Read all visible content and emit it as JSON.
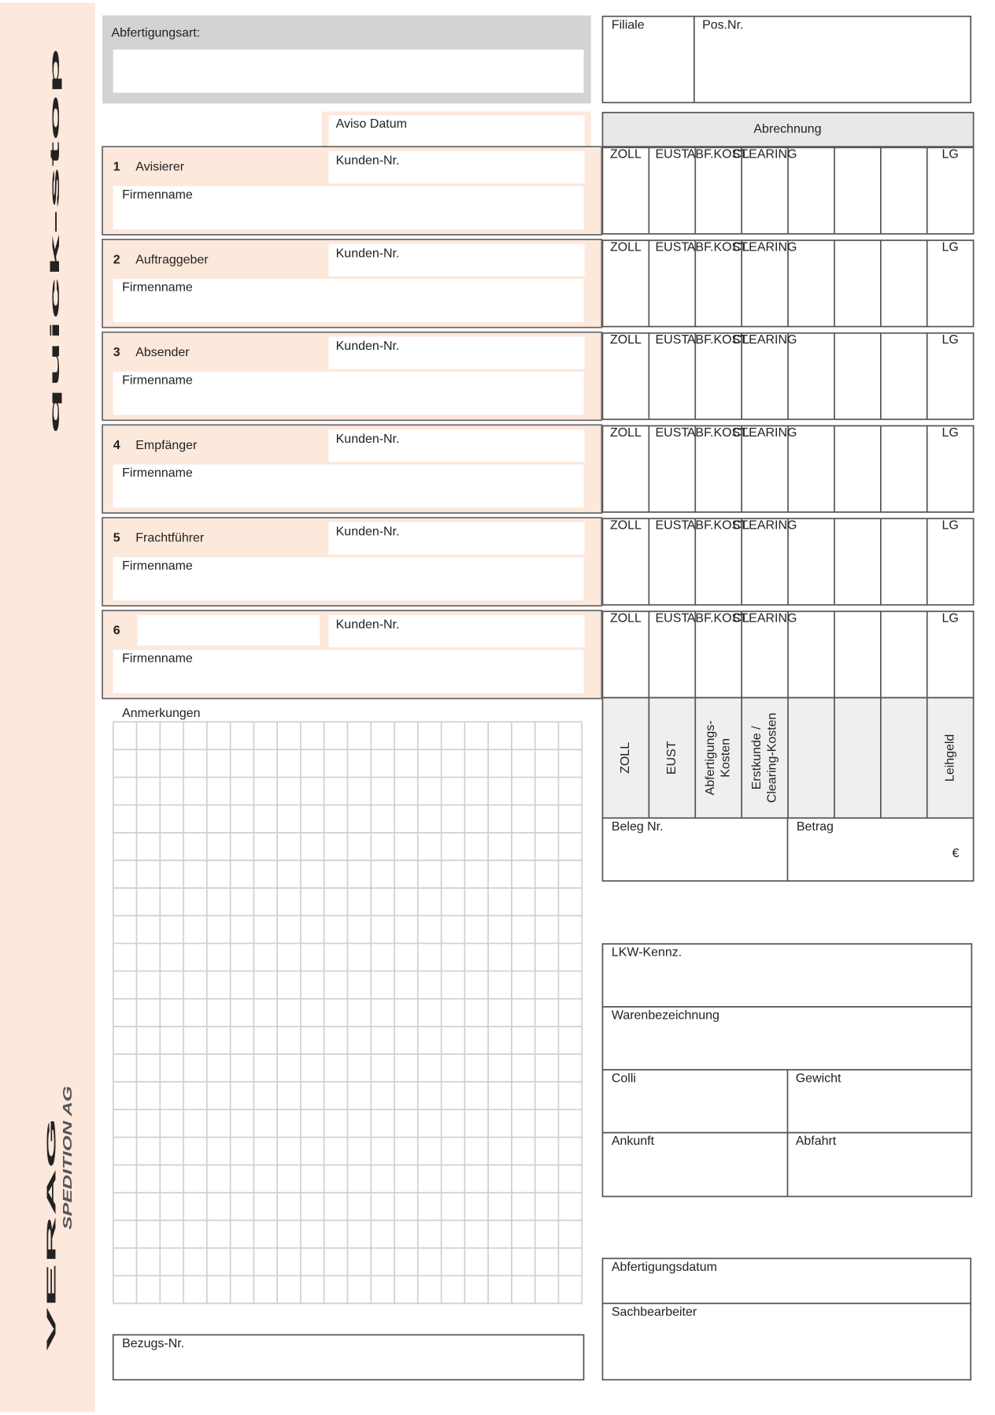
{
  "brand": {
    "product": "quick-stop",
    "company": "VERAG",
    "company_suffix": "SPEDITION AG"
  },
  "header": {
    "abfertigungsart": "Abfertigungsart:",
    "filiale": "Filiale",
    "pos_nr": "Pos.Nr.",
    "aviso_datum": "Aviso Datum"
  },
  "parties": {
    "kunden_nr": "Kunden-Nr.",
    "firmenname": "Firmenname",
    "rows": [
      {
        "number": 1,
        "name": "Avisierer"
      },
      {
        "number": 2,
        "name": "Auftraggeber"
      },
      {
        "number": 3,
        "name": "Absender"
      },
      {
        "number": 4,
        "name": "Empfänger"
      },
      {
        "number": 5,
        "name": "Frachtführer"
      },
      {
        "number": 6
      }
    ]
  },
  "abrechnung": {
    "title": "Abrechnung",
    "short_labels": [
      "ZOLL",
      "EUST",
      "ABF.KOST.",
      "CLEARING"
    ],
    "short_last": "LG",
    "long_labels": [
      [
        "ZOLL"
      ],
      [
        "EUST"
      ],
      [
        "Abfertigungs-",
        "Kosten"
      ],
      [
        "Erstkunde /",
        "Clearing-Kosten"
      ]
    ],
    "long_last": "Leihgeld",
    "beleg_nr": "Beleg Nr.",
    "betrag": "Betrag",
    "currency": "€"
  },
  "notes": {
    "anmerkungen": "Anmerkungen",
    "bezugs_nr": "Bezugs-Nr."
  },
  "shipment": {
    "lkw_kennz": "LKW-Kennz.",
    "warenbezeichnung": "Warenbezeichnung",
    "colli": "Colli",
    "gewicht": "Gewicht",
    "ankunft": "Ankunft",
    "abfahrt": "Abfahrt"
  },
  "processing": {
    "abfertigungsdatum": "Abfertigungsdatum",
    "sachbearbeiter": "Sachbearbeiter"
  }
}
